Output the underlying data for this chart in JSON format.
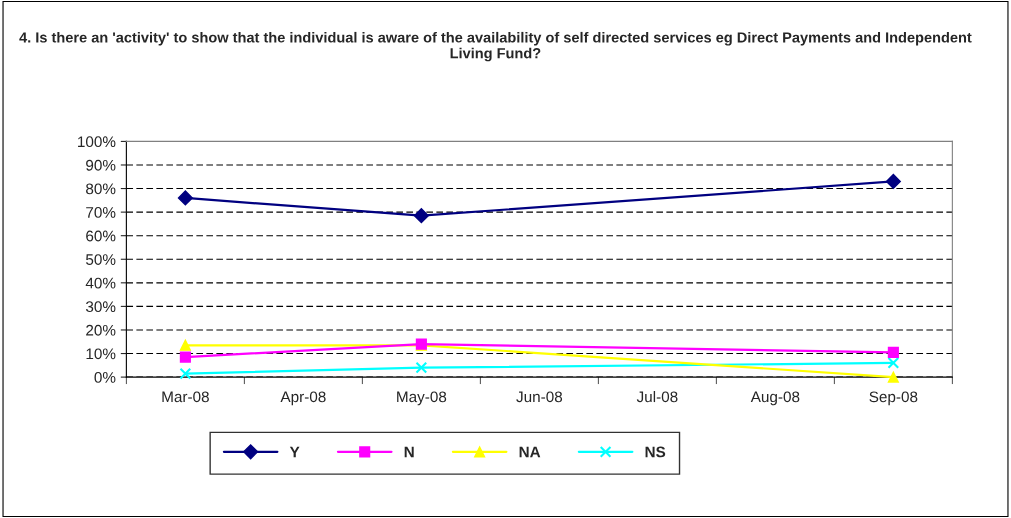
{
  "chart_data": {
    "type": "line",
    "title": "4. Is there an 'activity' to show that the individual is aware of the availability of self directed services eg Direct Payments and Independent Living Fund?",
    "categories": [
      "Mar-08",
      "Apr-08",
      "May-08",
      "Jun-08",
      "Jul-08",
      "Aug-08",
      "Sep-08"
    ],
    "series": [
      {
        "name": "Y",
        "color": "#000080",
        "marker": "diamond",
        "values": [
          76,
          null,
          68.5,
          null,
          null,
          null,
          83
        ]
      },
      {
        "name": "N",
        "color": "#ff00ff",
        "marker": "square",
        "values": [
          8.5,
          null,
          14,
          null,
          null,
          null,
          10.5
        ]
      },
      {
        "name": "NA",
        "color": "#ffff00",
        "marker": "triangle",
        "values": [
          13.5,
          null,
          13.5,
          null,
          null,
          null,
          0
        ]
      },
      {
        "name": "NS",
        "color": "#00ffff",
        "marker": "cross",
        "values": [
          1.5,
          null,
          4,
          null,
          null,
          null,
          6
        ]
      }
    ],
    "ylim": [
      0,
      100
    ],
    "yticks": [
      {
        "value": 0,
        "label": "0%"
      },
      {
        "value": 10,
        "label": "10%"
      },
      {
        "value": 20,
        "label": "20%"
      },
      {
        "value": 30,
        "label": "30%"
      },
      {
        "value": 40,
        "label": "40%"
      },
      {
        "value": 50,
        "label": "50%"
      },
      {
        "value": 60,
        "label": "60%"
      },
      {
        "value": 70,
        "label": "70%"
      },
      {
        "value": 80,
        "label": "80%"
      },
      {
        "value": 90,
        "label": "90%"
      },
      {
        "value": 100,
        "label": "100%"
      }
    ],
    "grid": "y",
    "line_style": "solid",
    "legend": "bottom"
  }
}
